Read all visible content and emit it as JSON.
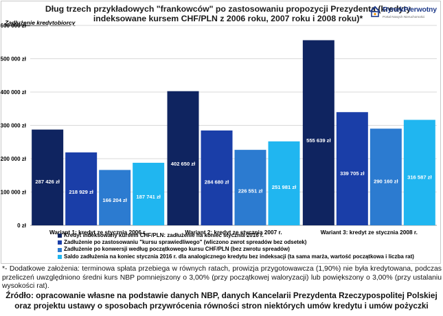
{
  "title": "Dług trzech przykładowych \"frankowców\" po zastosowaniu propozycji Prezydenta (kredyty indeksowane kursem CHF/PLN z 2006 roku, 2007 roku i 2008 roku)*",
  "logo": {
    "name": "RynekPierwotny",
    "tagline": "Portal Nowych Nieruchomości"
  },
  "chart_data": {
    "type": "bar",
    "ylabel": "Zadłużenie kredytobiorcy",
    "ylim": [
      0,
      600000
    ],
    "yticks": [
      0,
      100000,
      200000,
      300000,
      400000,
      500000,
      600000
    ],
    "ytick_labels": [
      "0 zł",
      "100 000 zł",
      "200 000 zł",
      "300 000 zł",
      "400 000 zł",
      "500 000 zł",
      "600 000 zł"
    ],
    "grid": true,
    "legend_position": "bottom",
    "categories": [
      "Wariant 1: kredyt ze stycznia 2006 r.",
      "Wariant 2: kredyt ze stycznia 2007 r.",
      "Wariant 3: kredyt ze stycznia 2008 r."
    ],
    "series": [
      {
        "name": "Kredyt indeksowany kursem CHF/PLN: zadłużenie na koniec stycznia 2016 r.",
        "color": "#0f2460",
        "values": [
          287426,
          402650,
          555639
        ],
        "labels": [
          "287 426 zł",
          "402 650 zł",
          "555 639 zł"
        ]
      },
      {
        "name": "Zadłużenie po zastosowaniu \"kursu sprawiedliwego\" (wliczono zwrot spreadów bez odsetek)",
        "color": "#1a3ea8",
        "values": [
          218929,
          284680,
          339705
        ],
        "labels": [
          "218 929 zł",
          "284 680 zł",
          "339 705 zł"
        ]
      },
      {
        "name": "Zadłużenie po konwersji według początkowego kursu CHF/PLN (bez zwrotu spreadów)",
        "color": "#2c7bd0",
        "values": [
          166204,
          226551,
          290160
        ],
        "labels": [
          "166 204 zł",
          "226 551 zł",
          "290 160 zł"
        ]
      },
      {
        "name": "Saldo zadłużenia na koniec stycznia 2016 r. dla analogicznego kredytu bez indeksacji (ta sama marża, wartość początkowa i liczba rat)",
        "color": "#20b6f0",
        "values": [
          187741,
          251981,
          316587
        ],
        "labels": [
          "187 741 zł",
          "251 981 zł",
          "316 587 zł"
        ]
      }
    ]
  },
  "note": "*- Dodatkowe założenia: terminowa spłata przebiega w równych ratach, prowizja przygotowawcza (1,90%) nie była kredytowana, podczas przeliczeń uwzględniono średni kurs NBP pomniejszony o 3,00% (przy początkowej waloryzacji) lub powiększony o 3,00% (przy ustalaniu wysokości rat).",
  "source": "Źródło: opracowanie własne na podstawie danych NBP, danych Kancelarii Prezydenta Rzeczypospolitej Polskiej oraz projektu ustawy o sposobach przywrócenia równości stron niektórych umów kredytu i umów pożyczki"
}
